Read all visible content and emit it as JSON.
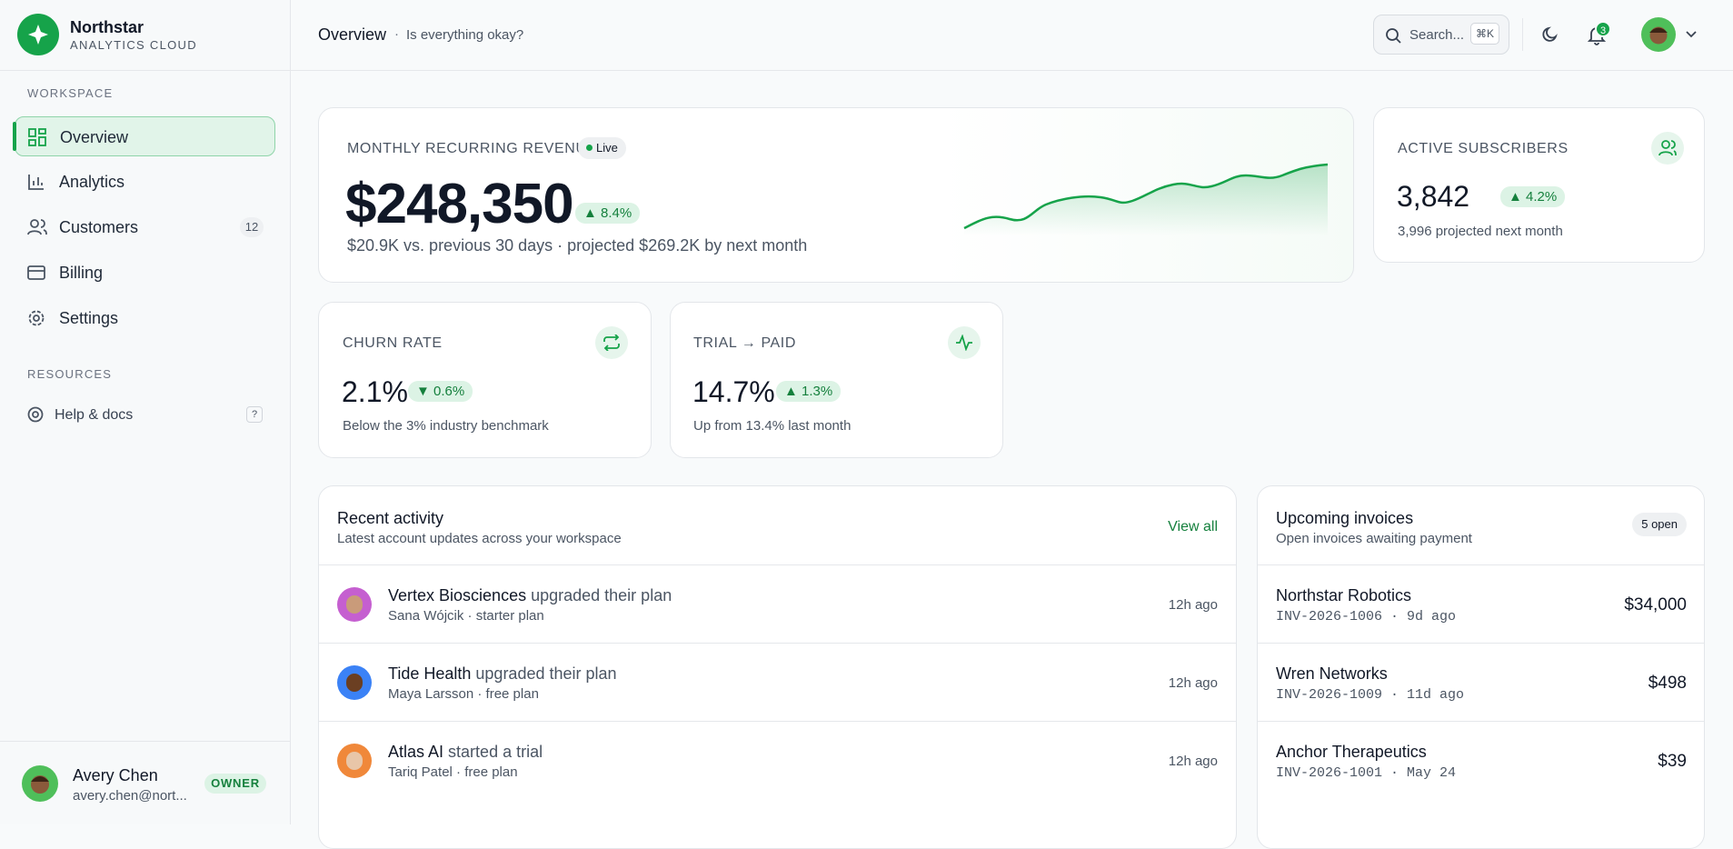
{
  "sidebar": {
    "brand": "Northstar",
    "brand_sub": "ANALYTICS CLOUD",
    "workspace_label": "WORKSPACE",
    "nav": [
      {
        "label": "Overview"
      },
      {
        "label": "Analytics"
      },
      {
        "label": "Customers",
        "badge": "12"
      },
      {
        "label": "Billing"
      },
      {
        "label": "Settings"
      }
    ],
    "resources_label": "RESOURCES",
    "help": {
      "label": "Help & docs",
      "badge": "?"
    },
    "user": {
      "name": "Avery Chen",
      "email": "avery.chen@nort...",
      "role": "OWNER"
    }
  },
  "header": {
    "title": "Overview",
    "subtitle": "Is everything okay?",
    "search": "Search...",
    "shortcut": "⌘K",
    "notifications": "3"
  },
  "mrr": {
    "label": "MONTHLY RECURRING REVENUE",
    "live": "Live",
    "value": "$248,350",
    "change": "▲ 8.4%",
    "sub": "$20.9K vs. previous 30 days · projected $269.2K by next month"
  },
  "subscribers": {
    "label": "ACTIVE SUBSCRIBERS",
    "value": "3,842",
    "change": "▲ 4.2%",
    "sub": "3,996 projected next month"
  },
  "churn": {
    "label": "CHURN RATE",
    "value": "2.1%",
    "change": "▼ 0.6%",
    "sub": "Below the 3% industry benchmark"
  },
  "trial": {
    "label": "TRIAL → PAID",
    "value": "14.7%",
    "change": "▲ 1.3%",
    "sub": "Up from 13.4% last month"
  },
  "activity": {
    "title": "Recent activity",
    "subtitle": "Latest account updates across your workspace",
    "view_all": "View all",
    "rows": [
      {
        "name": "Vertex Biosciences",
        "action": "upgraded their plan",
        "meta": "Sana Wójcik · starter plan",
        "time": "12h ago"
      },
      {
        "name": "Tide Health",
        "action": "upgraded their plan",
        "meta": "Maya Larsson · free plan",
        "time": "12h ago"
      },
      {
        "name": "Atlas AI",
        "action": "started a trial",
        "meta": "Tariq Patel · free plan",
        "time": "12h ago"
      }
    ]
  },
  "invoices": {
    "title": "Upcoming invoices",
    "subtitle": "Open invoices awaiting payment",
    "open": "5 open",
    "rows": [
      {
        "name": "Northstar Robotics",
        "meta": "INV-2026-1006 · 9d ago",
        "amount": "$34,000"
      },
      {
        "name": "Wren Networks",
        "meta": "INV-2026-1009 · 11d ago",
        "amount": "$498"
      },
      {
        "name": "Anchor Therapeutics",
        "meta": "INV-2026-1001 · May 24",
        "amount": "$39"
      }
    ]
  }
}
